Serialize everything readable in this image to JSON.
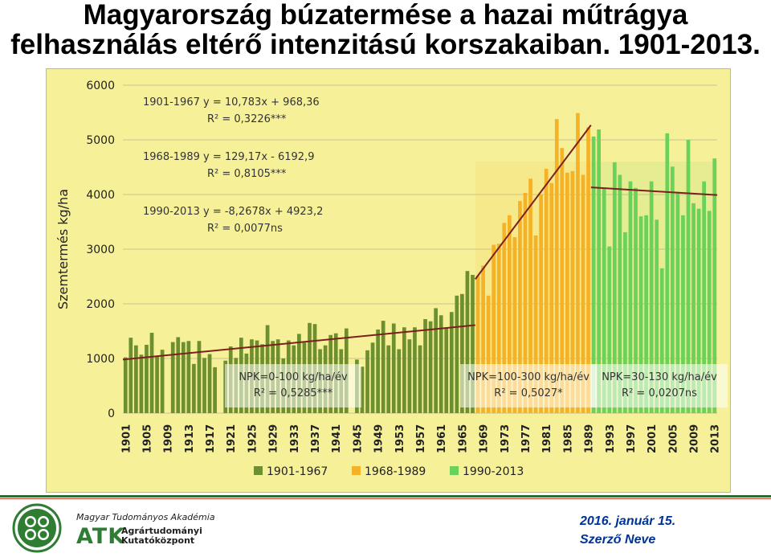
{
  "title": {
    "line1": "Magyarország búzatermése a hazai műtrágya",
    "line2": "felhasználás eltérő intenzitású korszakaiban. 1901-2013."
  },
  "footer": {
    "org_line1": "Magyar Tudományos Akadémia",
    "org_abbrev": "ATK",
    "org_line2a": "Agrártudományi",
    "org_line2b": "Kutatóközpont",
    "date": "2016. január 15.",
    "author": "Szerző Neve"
  },
  "colors": {
    "background": "#f6f199",
    "period1": "#6e8f2f",
    "period2": "#f5b227",
    "period3": "#6bd15a",
    "trend": "#7b1f1f",
    "title": "#000000",
    "footer_text": "#003399",
    "logo_green": "#2e7d32"
  },
  "chart_data": {
    "type": "bar",
    "ylabel": "Szemtermés kg/ha",
    "ylim": [
      0,
      6000
    ],
    "yticks": [
      0,
      1000,
      2000,
      3000,
      4000,
      5000,
      6000
    ],
    "xticks": [
      "1901",
      "1905",
      "1909",
      "1913",
      "1917",
      "1921",
      "1925",
      "1929",
      "1933",
      "1937",
      "1941",
      "1945",
      "1949",
      "1953",
      "1957",
      "1961",
      "1965",
      "1969",
      "1973",
      "1977",
      "1981",
      "1985",
      "1989",
      "1993",
      "1997",
      "2001",
      "2005",
      "2009",
      "2013"
    ],
    "grid": true,
    "legend_position": "bottom",
    "series": [
      {
        "name": "1901-1967",
        "period": [
          1901,
          1967
        ],
        "x": [
          1901,
          1902,
          1903,
          1904,
          1905,
          1906,
          1907,
          1908,
          1909,
          1910,
          1911,
          1912,
          1913,
          1914,
          1915,
          1916,
          1917,
          1918,
          1919,
          1920,
          1921,
          1922,
          1923,
          1924,
          1925,
          1926,
          1927,
          1928,
          1929,
          1930,
          1931,
          1932,
          1933,
          1934,
          1935,
          1936,
          1937,
          1938,
          1939,
          1940,
          1941,
          1942,
          1943,
          1944,
          1945,
          1946,
          1947,
          1948,
          1949,
          1950,
          1951,
          1952,
          1953,
          1954,
          1955,
          1956,
          1957,
          1958,
          1959,
          1960,
          1961,
          1962,
          1963,
          1964,
          1965,
          1966,
          1967
        ],
        "values": [
          1020,
          1380,
          1240,
          1070,
          1250,
          1470,
          1030,
          1160,
          null,
          1300,
          1390,
          1300,
          1320,
          900,
          1320,
          1010,
          1080,
          840,
          null,
          960,
          1220,
          1010,
          1380,
          1090,
          1350,
          1330,
          1260,
          1610,
          1320,
          1350,
          1000,
          1330,
          1240,
          1450,
          1290,
          1650,
          1630,
          1170,
          1240,
          1430,
          1460,
          1170,
          1550,
          null,
          980,
          850,
          1150,
          1290,
          1530,
          1690,
          1240,
          1640,
          1170,
          1570,
          1350,
          1570,
          1240,
          1720,
          1680,
          1920,
          1790,
          1570,
          1850,
          2150,
          2180,
          2600,
          2530
        ],
        "trend": {
          "equation": "y = 10,783x + 968,36",
          "r2": "R² = 0,3226***",
          "from": [
            1901,
            980
          ],
          "to": [
            1967,
            1610
          ]
        },
        "npk": "NPK=0-100 kg/ha/év",
        "npk_r2": "R² = 0,5285***"
      },
      {
        "name": "1968-1989",
        "period": [
          1968,
          1989
        ],
        "x": [
          1968,
          1969,
          1970,
          1971,
          1972,
          1973,
          1974,
          1975,
          1976,
          1977,
          1978,
          1979,
          1980,
          1981,
          1982,
          1983,
          1984,
          1985,
          1986,
          1987,
          1988,
          1989
        ],
        "values": [
          2510,
          2700,
          2150,
          3080,
          3100,
          3480,
          3620,
          3220,
          3880,
          4030,
          4290,
          3250,
          4000,
          4470,
          4210,
          5380,
          4850,
          4400,
          4430,
          5490,
          4360,
          5230
        ],
        "trend": {
          "equation": "y = 129,17x - 6192,9",
          "r2": "R² = 0,8105***",
          "from": [
            1968,
            2450
          ],
          "to": [
            1989,
            5270
          ]
        },
        "npk": "NPK=100-300 kg/ha/év",
        "npk_r2": "R² = 0,5027*"
      },
      {
        "name": "1990-2013",
        "period": [
          1990,
          2013
        ],
        "x": [
          1990,
          1991,
          1992,
          1993,
          1994,
          1995,
          1996,
          1997,
          1998,
          1999,
          2000,
          2001,
          2002,
          2003,
          2004,
          2005,
          2006,
          2007,
          2008,
          2009,
          2010,
          2011,
          2012,
          2013
        ],
        "values": [
          5060,
          5190,
          4110,
          3050,
          4590,
          4360,
          3310,
          4240,
          4120,
          3600,
          3620,
          4240,
          3540,
          2650,
          5120,
          4510,
          4050,
          3620,
          5000,
          3840,
          3740,
          4240,
          3700,
          4660
        ],
        "trend": {
          "equation": "y = -8,2678x + 4923,2",
          "r2": "R² = 0,0077ns",
          "from": [
            1990,
            4130
          ],
          "to": [
            2013,
            3990
          ]
        },
        "npk": "NPK=30-130 kg/ha/év",
        "npk_r2": "R² = 0,0207ns"
      }
    ]
  }
}
